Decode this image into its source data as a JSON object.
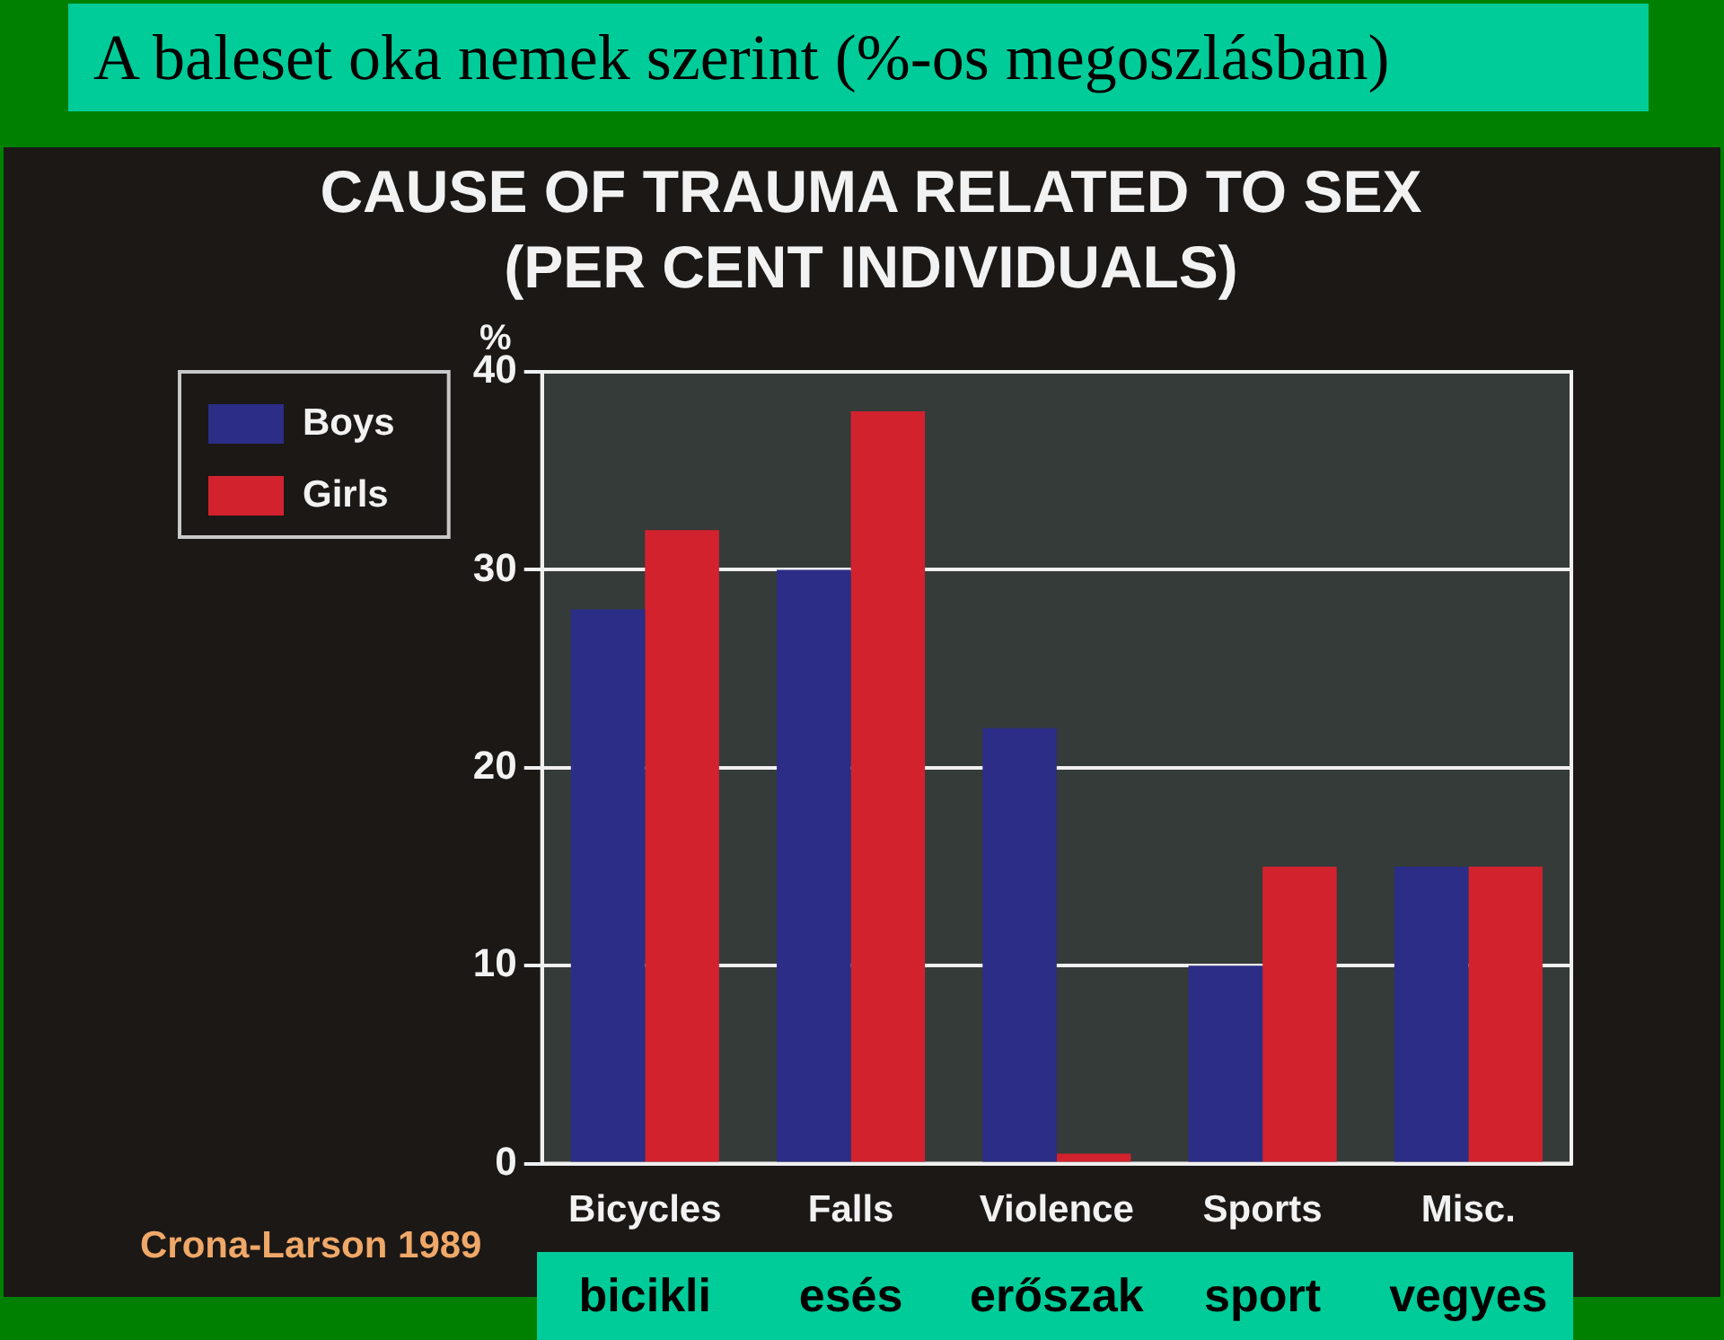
{
  "chart_data": {
    "type": "bar",
    "title": "A baleset oka nemek szerint (%-os megoszlásban)",
    "subtitle": "CAUSE OF TRAUMA RELATED TO SEX (PER CENT INDIVIDUALS)",
    "ylabel": "%",
    "categories": [
      "Bicycles",
      "Falls",
      "Violence",
      "Sports",
      "Misc."
    ],
    "series": [
      {
        "name": "Boys",
        "color": "#2c2d86",
        "values": [
          28,
          30,
          22,
          10,
          15
        ]
      },
      {
        "name": "Girls",
        "color": "#d2222e",
        "values": [
          32,
          38,
          0.5,
          15,
          15
        ]
      }
    ],
    "ylim": [
      0,
      40
    ],
    "yticks": [
      0,
      10,
      20,
      30,
      40
    ],
    "grid": "y",
    "legend": "left",
    "annotations": [
      "bicikli",
      "esés",
      "erőszak",
      "sport",
      "vegyes",
      "Crona-Larson 1989"
    ]
  }
}
